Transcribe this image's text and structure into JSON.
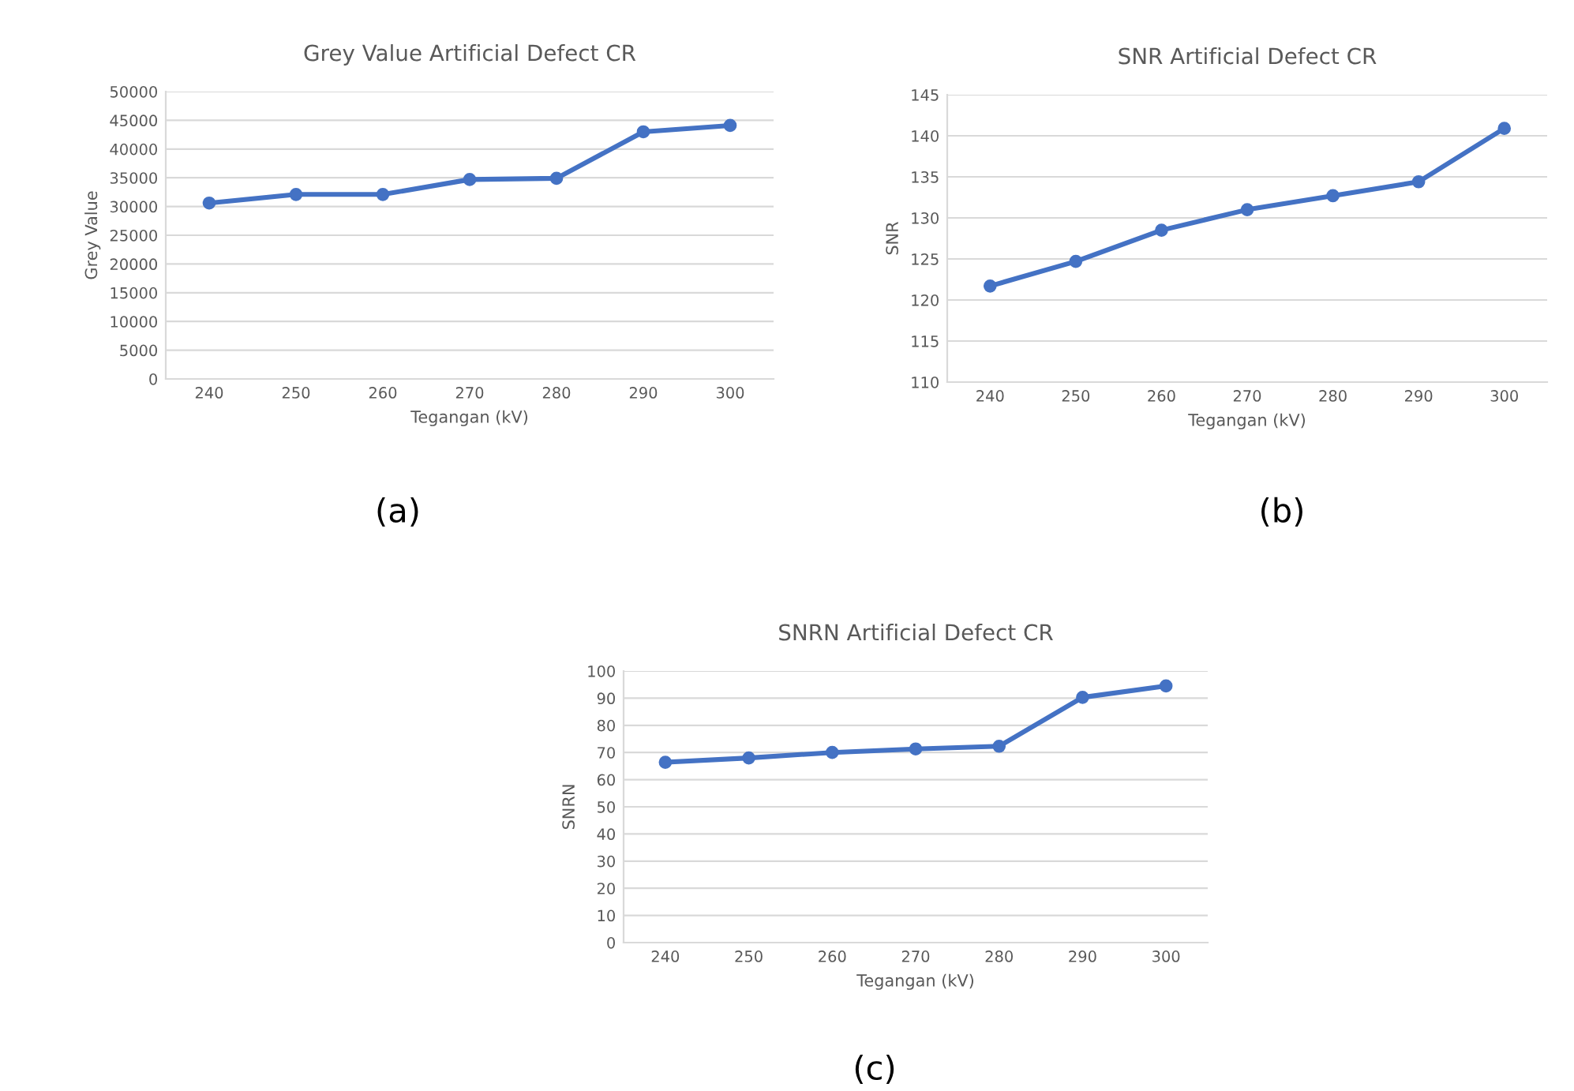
{
  "chart_data": [
    {
      "type": "line",
      "title": "Grey Value Artificial Defect CR",
      "xlabel": "Tegangan (kV)",
      "ylabel": "Grey Value",
      "categories": [
        "240",
        "250",
        "260",
        "270",
        "280",
        "290",
        "300"
      ],
      "series": [
        {
          "color": "#4472c4",
          "values": [
            30600,
            32100,
            32100,
            34700,
            34900,
            43000,
            44100
          ]
        }
      ],
      "ylim": [
        0,
        50000
      ],
      "yticks": [
        0,
        5000,
        10000,
        15000,
        20000,
        25000,
        30000,
        35000,
        40000,
        45000,
        50000
      ],
      "grid": "y",
      "marker": "circle",
      "line_style": "solid",
      "annotations": [
        "(a)"
      ]
    },
    {
      "type": "line",
      "title": "SNR Artificial Defect CR",
      "xlabel": "Tegangan (kV)",
      "ylabel": "SNR",
      "categories": [
        "240",
        "250",
        "260",
        "270",
        "280",
        "290",
        "300"
      ],
      "series": [
        {
          "color": "#4472c4",
          "values": [
            121.7,
            124.7,
            128.5,
            131.0,
            132.7,
            134.4,
            140.9
          ]
        }
      ],
      "ylim": [
        110,
        145
      ],
      "yticks": [
        110,
        115,
        120,
        125,
        130,
        135,
        140,
        145
      ],
      "grid": "y",
      "marker": "circle",
      "line_style": "solid",
      "annotations": [
        "(b)"
      ]
    },
    {
      "type": "line",
      "title": "SNRN Artificial Defect CR",
      "xlabel": "Tegangan (kV)",
      "ylabel": "SNRN",
      "categories": [
        "240",
        "250",
        "260",
        "270",
        "280",
        "290",
        "300"
      ],
      "series": [
        {
          "color": "#4472c4",
          "values": [
            66.4,
            68.0,
            70.0,
            71.3,
            72.3,
            90.3,
            94.5
          ]
        }
      ],
      "ylim": [
        0,
        100
      ],
      "yticks": [
        0,
        10,
        20,
        30,
        40,
        50,
        60,
        70,
        80,
        90,
        100
      ],
      "grid": "y",
      "marker": "circle",
      "line_style": "solid",
      "annotations": [
        "(c)"
      ]
    }
  ]
}
